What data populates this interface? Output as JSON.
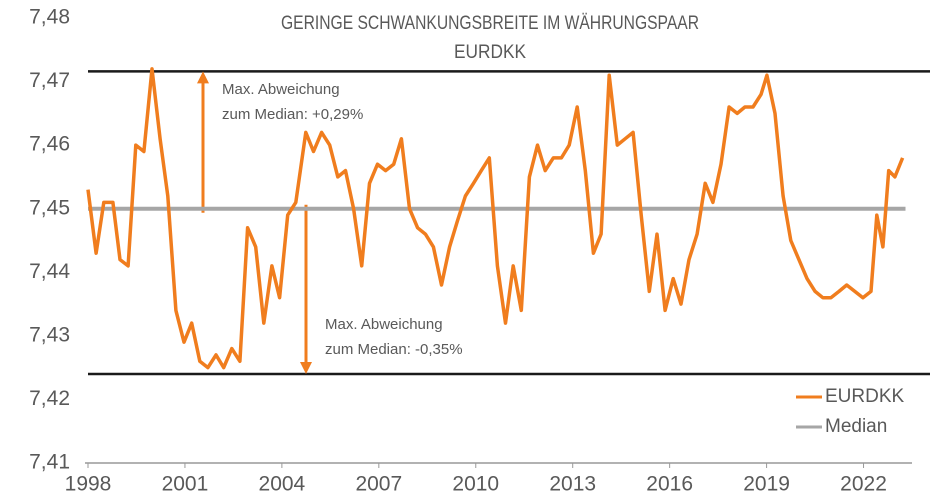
{
  "chart_data": {
    "type": "line",
    "title": [
      "GERINGE SCHWANKUNGSBREITE IM WÄHRUNGSPAAR",
      "EURDKK"
    ],
    "xlim": [
      1998,
      2023.5
    ],
    "ylim": [
      7.41,
      7.48
    ],
    "xticks": [
      1998,
      2001,
      2004,
      2007,
      2010,
      2013,
      2016,
      2019,
      2022
    ],
    "yticks": [
      {
        "value": 7.41,
        "label": "7,41"
      },
      {
        "value": 7.42,
        "label": "7,42"
      },
      {
        "value": 7.43,
        "label": "7,43"
      },
      {
        "value": 7.44,
        "label": "7,44"
      },
      {
        "value": 7.45,
        "label": "7,45"
      },
      {
        "value": 7.46,
        "label": "7,46"
      },
      {
        "value": 7.47,
        "label": "7,47"
      },
      {
        "value": 7.48,
        "label": "7,48"
      }
    ],
    "series": [
      {
        "name": "EURDKK",
        "color": "#f07d1e",
        "x": [
          1998.0,
          1998.25,
          1998.49,
          1998.77,
          1998.99,
          1999.24,
          1999.48,
          1999.73,
          1999.98,
          2000.23,
          2000.47,
          2000.72,
          2000.97,
          2001.21,
          2001.46,
          2001.71,
          2001.96,
          2002.2,
          2002.45,
          2002.7,
          2002.94,
          2003.19,
          2003.44,
          2003.69,
          2003.93,
          2004.18,
          2004.43,
          2004.74,
          2004.98,
          2005.23,
          2005.48,
          2005.73,
          2005.97,
          2006.22,
          2006.47,
          2006.71,
          2006.96,
          2007.21,
          2007.46,
          2007.7,
          2007.95,
          2008.2,
          2008.44,
          2008.69,
          2008.94,
          2009.19,
          2009.43,
          2009.68,
          2009.93,
          2010.17,
          2010.42,
          2010.67,
          2010.92,
          2011.16,
          2011.41,
          2011.66,
          2011.91,
          2012.15,
          2012.4,
          2012.65,
          2012.89,
          2013.14,
          2013.39,
          2013.64,
          2013.88,
          2014.13,
          2014.38,
          2014.62,
          2014.87,
          2015.12,
          2015.37,
          2015.61,
          2015.86,
          2016.11,
          2016.35,
          2016.6,
          2016.85,
          2017.1,
          2017.34,
          2017.59,
          2017.84,
          2018.09,
          2018.33,
          2018.58,
          2018.83,
          2019.01,
          2019.26,
          2019.51,
          2019.75,
          2020.0,
          2020.25,
          2020.5,
          2020.74,
          2020.99,
          2021.24,
          2021.48,
          2021.73,
          2021.98,
          2022.23,
          2022.41,
          2022.6,
          2022.78,
          2022.97,
          2023.21
        ],
        "values": [
          7.453,
          7.443,
          7.451,
          7.451,
          7.442,
          7.441,
          7.46,
          7.459,
          7.472,
          7.461,
          7.452,
          7.434,
          7.429,
          7.432,
          7.426,
          7.425,
          7.427,
          7.425,
          7.428,
          7.426,
          7.447,
          7.444,
          7.432,
          7.441,
          7.436,
          7.449,
          7.451,
          7.462,
          7.459,
          7.462,
          7.46,
          7.455,
          7.456,
          7.45,
          7.441,
          7.454,
          7.457,
          7.456,
          7.457,
          7.461,
          7.45,
          7.447,
          7.446,
          7.444,
          7.438,
          7.444,
          7.448,
          7.452,
          7.454,
          7.456,
          7.458,
          7.441,
          7.432,
          7.441,
          7.434,
          7.455,
          7.46,
          7.456,
          7.458,
          7.458,
          7.46,
          7.466,
          7.456,
          7.443,
          7.446,
          7.471,
          7.46,
          7.461,
          7.462,
          7.449,
          7.437,
          7.446,
          7.434,
          7.439,
          7.435,
          7.442,
          7.446,
          7.454,
          7.451,
          7.457,
          7.466,
          7.465,
          7.466,
          7.466,
          7.468,
          7.471,
          7.465,
          7.452,
          7.445,
          7.442,
          7.439,
          7.437,
          7.436,
          7.436,
          7.437,
          7.438,
          7.437,
          7.436,
          7.437,
          7.449,
          7.444,
          7.456,
          7.455,
          7.458
        ]
      },
      {
        "name": "Median",
        "color": "#a6a6a6",
        "x": [
          1998,
          2023.3
        ],
        "values": [
          7.45,
          7.45
        ]
      }
    ],
    "reference_lines": [
      {
        "value": 7.4716,
        "color": "#1a1a1a",
        "annotation": [
          "Max. Abweichung",
          "zum Median: +0,29%"
        ]
      },
      {
        "value": 7.424,
        "color": "#1a1a1a",
        "annotation": [
          "Max. Abweichung",
          "zum Median: -0,35%"
        ]
      }
    ],
    "legend": "lower right"
  }
}
